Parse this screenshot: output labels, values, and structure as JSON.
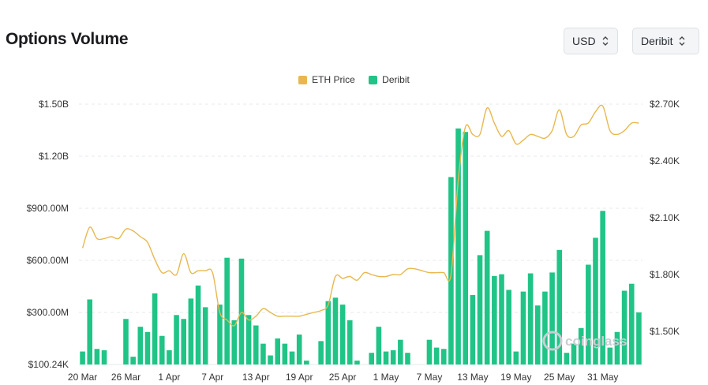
{
  "header": {
    "title": "Options Volume",
    "currency_select": "USD",
    "exchange_select": "Deribit"
  },
  "colors": {
    "price_line": "#e8b84f",
    "volume_bar": "#20c486",
    "grid": "#e6e8eb"
  },
  "watermark": "coinglass",
  "chart_data": {
    "type": "bar",
    "legend": [
      {
        "label": "ETH Price",
        "color": "#e8b84f"
      },
      {
        "label": "Deribit",
        "color": "#20c486"
      }
    ],
    "legend_placement": "top-center",
    "grid": true,
    "left_axis": {
      "ticks": [
        {
          "value": 100.24,
          "label": "$100.24K"
        },
        {
          "value": 300,
          "label": "$300.00M"
        },
        {
          "value": 600,
          "label": "$600.00M"
        },
        {
          "value": 900,
          "label": "$900.00M"
        },
        {
          "value": 1200,
          "label": "$1.20B"
        },
        {
          "value": 1500,
          "label": "$1.50B"
        }
      ],
      "unit": "USD millions"
    },
    "right_axis": {
      "ticks": [
        {
          "value": 1.5,
          "label": "$1.50K"
        },
        {
          "value": 1.8,
          "label": "$1.80K"
        },
        {
          "value": 2.1,
          "label": "$2.10K"
        },
        {
          "value": 2.4,
          "label": "$2.40K"
        },
        {
          "value": 2.7,
          "label": "$2.70K"
        }
      ],
      "unit": "USD thousands"
    },
    "x_tick_labels": [
      {
        "i": 0,
        "label": "20 Mar"
      },
      {
        "i": 6,
        "label": "26 Mar"
      },
      {
        "i": 12,
        "label": "1 Apr"
      },
      {
        "i": 18,
        "label": "7 Apr"
      },
      {
        "i": 24,
        "label": "13 Apr"
      },
      {
        "i": 30,
        "label": "19 Apr"
      },
      {
        "i": 36,
        "label": "25 Apr"
      },
      {
        "i": 42,
        "label": "1 May"
      },
      {
        "i": 48,
        "label": "7 May"
      },
      {
        "i": 54,
        "label": "13 May"
      },
      {
        "i": 60,
        "label": "19 May"
      },
      {
        "i": 66,
        "label": "25 May"
      },
      {
        "i": 72,
        "label": "31 May"
      }
    ],
    "series": [
      {
        "name": "Deribit",
        "axis": "left",
        "values": [
          150,
          375,
          160,
          155,
          90,
          95,
          275,
          130,
          245,
          225,
          410,
          210,
          155,
          290,
          275,
          380,
          455,
          330,
          85,
          345,
          615,
          270,
          610,
          290,
          250,
          180,
          135,
          200,
          180,
          150,
          215,
          115,
          75,
          190,
          365,
          385,
          345,
          270,
          115,
          85,
          145,
          245,
          150,
          155,
          195,
          145,
          100,
          95,
          195,
          165,
          160,
          1080,
          1360,
          1340,
          400,
          630,
          770,
          510,
          520,
          430,
          150,
          420,
          525,
          340,
          420,
          530,
          660,
          145,
          180,
          240,
          575,
          730,
          885,
          165,
          225,
          425,
          465,
          300
        ]
      },
      {
        "name": "ETH Price",
        "axis": "right",
        "values": [
          1.94,
          2.05,
          1.99,
          1.99,
          2.0,
          1.99,
          2.04,
          2.03,
          2.0,
          1.97,
          1.88,
          1.81,
          1.82,
          1.8,
          1.91,
          1.81,
          1.82,
          1.82,
          1.81,
          1.6,
          1.56,
          1.53,
          1.6,
          1.56,
          1.58,
          1.62,
          1.6,
          1.58,
          1.58,
          1.58,
          1.58,
          1.59,
          1.6,
          1.61,
          1.64,
          1.79,
          1.78,
          1.79,
          1.77,
          1.81,
          1.8,
          1.79,
          1.79,
          1.8,
          1.8,
          1.83,
          1.83,
          1.82,
          1.81,
          1.81,
          1.81,
          1.8,
          2.3,
          2.58,
          2.54,
          2.54,
          2.68,
          2.6,
          2.53,
          2.56,
          2.49,
          2.51,
          2.54,
          2.53,
          2.52,
          2.56,
          2.67,
          2.54,
          2.53,
          2.59,
          2.6,
          2.66,
          2.69,
          2.56,
          2.54,
          2.56,
          2.6,
          2.6
        ]
      }
    ]
  }
}
